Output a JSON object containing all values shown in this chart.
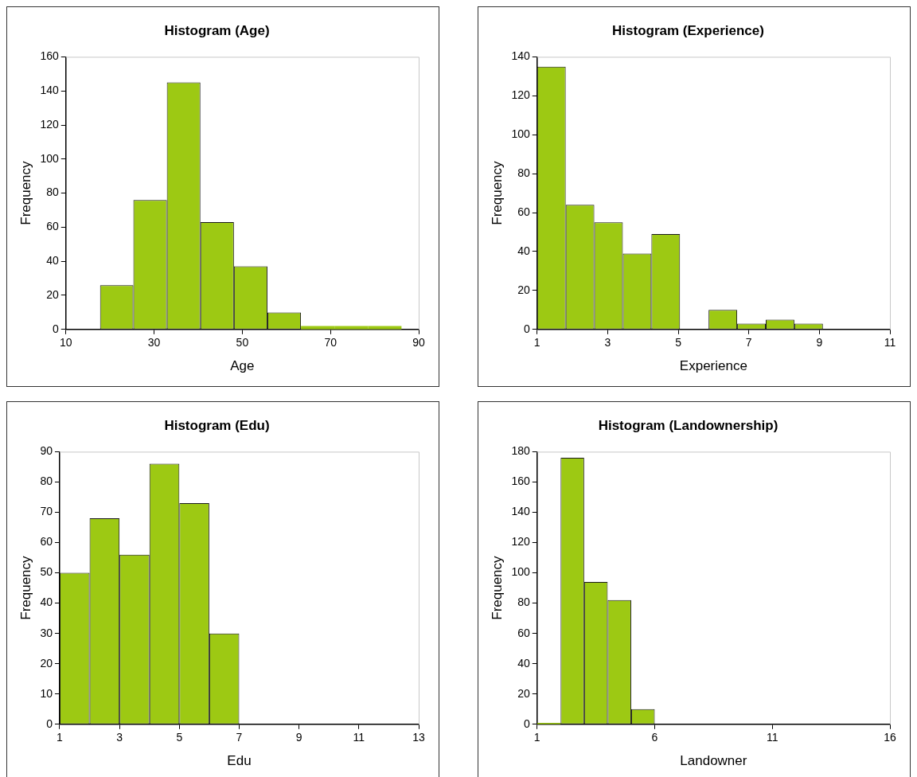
{
  "chart_data": [
    {
      "type": "histogram",
      "title": "Histogram (Age)",
      "xlabel": "Age",
      "ylabel": "Frequency",
      "color": "#9dc913",
      "bins": [
        17.75,
        25.3,
        32.9,
        40.5,
        48.1,
        55.7,
        63.3,
        70.9,
        78.5,
        86.1
      ],
      "values": [
        26,
        76,
        145,
        63,
        37,
        10,
        2,
        2,
        2
      ],
      "xlim": [
        10,
        90
      ],
      "xticks": [
        10,
        30,
        50,
        70,
        90
      ],
      "ylim": [
        0,
        160
      ],
      "yticks": [
        0,
        20,
        40,
        60,
        80,
        100,
        120,
        140,
        160
      ],
      "grid": false,
      "legend": false
    },
    {
      "type": "histogram",
      "title": "Histogram (Experience)",
      "xlabel": "Experience",
      "ylabel": "Frequency",
      "color": "#9dc913",
      "bins": [
        1,
        1.81,
        2.62,
        3.43,
        4.24,
        5.05,
        5.86,
        6.67,
        7.48,
        8.29,
        9.1
      ],
      "values": [
        135,
        64,
        55,
        39,
        49,
        0,
        10,
        3,
        5,
        3
      ],
      "xlim": [
        1,
        11
      ],
      "xticks": [
        1,
        3,
        5,
        7,
        9,
        11
      ],
      "ylim": [
        0,
        140
      ],
      "yticks": [
        0,
        20,
        40,
        60,
        80,
        100,
        120,
        140
      ],
      "grid": false,
      "legend": false
    },
    {
      "type": "histogram",
      "title": "Histogram (Edu)",
      "xlabel": "Edu",
      "ylabel": "Frequency",
      "color": "#9dc913",
      "bins": [
        1,
        2,
        3,
        4,
        5,
        6,
        7
      ],
      "values": [
        50,
        68,
        56,
        86,
        73,
        30
      ],
      "xlim": [
        1,
        13
      ],
      "xticks": [
        1,
        3,
        5,
        7,
        9,
        11,
        13
      ],
      "ylim": [
        0,
        90
      ],
      "yticks": [
        0,
        10,
        20,
        30,
        40,
        50,
        60,
        70,
        80,
        90
      ],
      "grid": false,
      "legend": false
    },
    {
      "type": "histogram",
      "title": "Histogram (Landownership)",
      "xlabel": "Landowner",
      "ylabel": "Frequency",
      "color": "#9dc913",
      "bins": [
        1,
        2,
        3,
        4,
        5,
        6
      ],
      "values": [
        1,
        176,
        94,
        82,
        10
      ],
      "xlim": [
        1,
        16
      ],
      "xticks": [
        1,
        6,
        11,
        16
      ],
      "ylim": [
        0,
        180
      ],
      "yticks": [
        0,
        20,
        40,
        60,
        80,
        100,
        120,
        140,
        160,
        180
      ],
      "grid": false,
      "legend": false
    }
  ]
}
